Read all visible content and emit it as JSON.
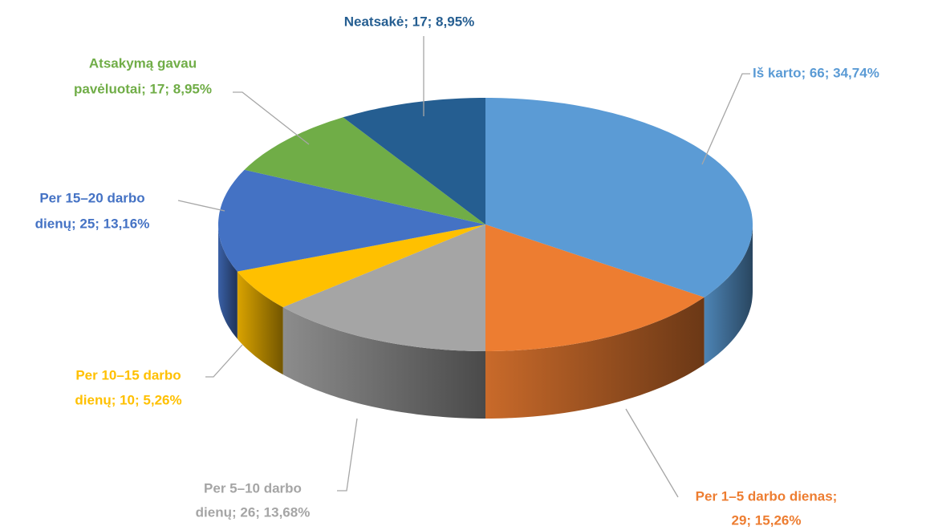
{
  "chart_data": {
    "type": "pie",
    "categories": [
      "Iš karto",
      "Per 1–5 darbo dienas",
      "Per 5–10 darbo dienų",
      "Per 10–15 darbo dienų",
      "Per 15–20 darbo dienų",
      "Atsakymą gavau pavėluotai",
      "Neatsakė"
    ],
    "values": [
      66,
      29,
      26,
      10,
      25,
      17,
      17
    ],
    "value_labels": [
      [
        "Iš karto; 66; 34,74%"
      ],
      [
        "Per 1–5 darbo dienas;",
        "29; 15,26%"
      ],
      [
        "Per 5–10 darbo",
        "dienų; 26; 13,68%"
      ],
      [
        "Per 10–15 darbo",
        "dienų; 10; 5,26%"
      ],
      [
        "Per 15–20 darbo",
        "dienų; 25; 13,16%"
      ],
      [
        "Atsakymą gavau",
        "pavėluotai; 17; 8,95%"
      ],
      [
        "Neatsakė; 17; 8,95%"
      ]
    ],
    "colors": [
      "#5b9bd5",
      "#ed7d31",
      "#a5a5a5",
      "#ffc000",
      "#4472c4",
      "#70ad47",
      "#255e91"
    ],
    "label_colors": [
      "#5b9bd5",
      "#ed7d31",
      "#a5a5a5",
      "#ffc000",
      "#4472c4",
      "#70ad47",
      "#255e91"
    ]
  }
}
